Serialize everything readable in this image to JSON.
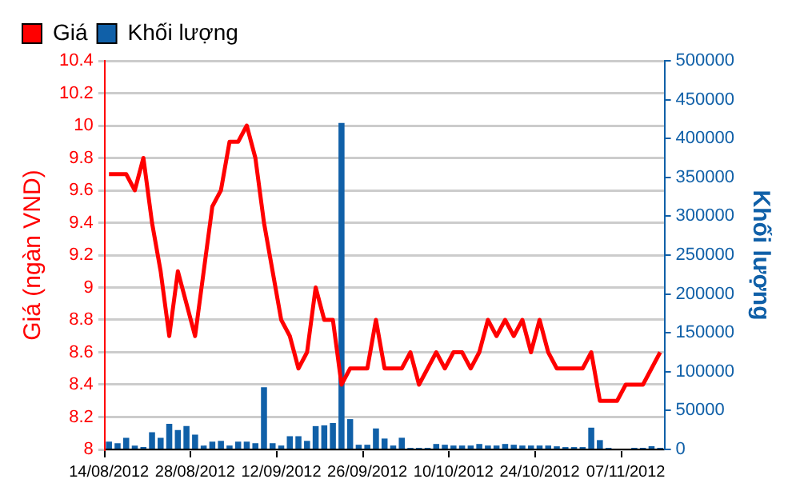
{
  "chart_data": {
    "type": "line",
    "xlabel": null,
    "ylabel": "Giá (ngàn VND)",
    "y2label": "Khối lượng",
    "categories": [
      "14/08/2012",
      null,
      null,
      null,
      null,
      null,
      null,
      null,
      null,
      null,
      "28/08/2012",
      null,
      null,
      null,
      null,
      null,
      null,
      null,
      null,
      null,
      "12/09/2012",
      null,
      null,
      null,
      null,
      null,
      null,
      null,
      null,
      null,
      "26/09/2012",
      null,
      null,
      null,
      null,
      null,
      null,
      null,
      null,
      null,
      "10/10/2012",
      null,
      null,
      null,
      null,
      null,
      null,
      null,
      null,
      null,
      "24/10/2012",
      null,
      null,
      null,
      null,
      null,
      null,
      null,
      null,
      null,
      "07/11/2012",
      null,
      null,
      null,
      null
    ],
    "series": [
      {
        "name": "Giá",
        "color": "#ff0000",
        "values": [
          9.7,
          9.7,
          9.7,
          9.6,
          9.8,
          9.4,
          9.1,
          8.7,
          9.1,
          8.9,
          8.7,
          9.1,
          9.5,
          9.6,
          9.9,
          9.9,
          10.0,
          9.8,
          9.4,
          9.1,
          8.8,
          8.7,
          8.5,
          8.6,
          9.0,
          8.8,
          8.8,
          8.4,
          8.5,
          8.5,
          8.5,
          8.8,
          8.5,
          8.5,
          8.5,
          8.6,
          8.4,
          8.5,
          8.6,
          8.5,
          8.6,
          8.6,
          8.5,
          8.6,
          8.8,
          8.7,
          8.8,
          8.7,
          8.8,
          8.6,
          8.8,
          8.6,
          8.5,
          8.5,
          8.5,
          8.5,
          8.6,
          8.3,
          8.3,
          8.3,
          8.4,
          8.4,
          8.4,
          8.5,
          8.6
        ]
      },
      {
        "name": "Khối lượng",
        "type": "bar",
        "axis": "y2",
        "color": "#1060a8",
        "values": [
          10000,
          8000,
          15000,
          5000,
          3000,
          22000,
          15000,
          33000,
          25000,
          30000,
          19000,
          5000,
          10000,
          11000,
          5000,
          10000,
          10000,
          8000,
          80000,
          8000,
          5000,
          17000,
          17000,
          11000,
          30000,
          31000,
          34000,
          420000,
          39000,
          6000,
          6000,
          27000,
          14000,
          5000,
          15000,
          2000,
          2000,
          2000,
          7000,
          6000,
          5000,
          5000,
          5000,
          7000,
          5000,
          5000,
          7000,
          6000,
          5000,
          5000,
          5000,
          5000,
          4000,
          3000,
          3000,
          3000,
          28000,
          12000,
          2000,
          0,
          1000,
          2000,
          2000,
          4000,
          2000
        ]
      }
    ],
    "ylim": [
      8,
      10.4
    ],
    "yticks": [
      8,
      8.2,
      8.4,
      8.6,
      8.8,
      9,
      9.2,
      9.4,
      9.6,
      9.8,
      10,
      10.2,
      10.4
    ],
    "y2lim": [
      0,
      500000
    ],
    "y2ticks": [
      0,
      50000,
      100000,
      150000,
      200000,
      250000,
      300000,
      350000,
      400000,
      450000,
      500000
    ],
    "grid": "y",
    "legend": "top left",
    "marker": "none",
    "line_style": "solid"
  }
}
